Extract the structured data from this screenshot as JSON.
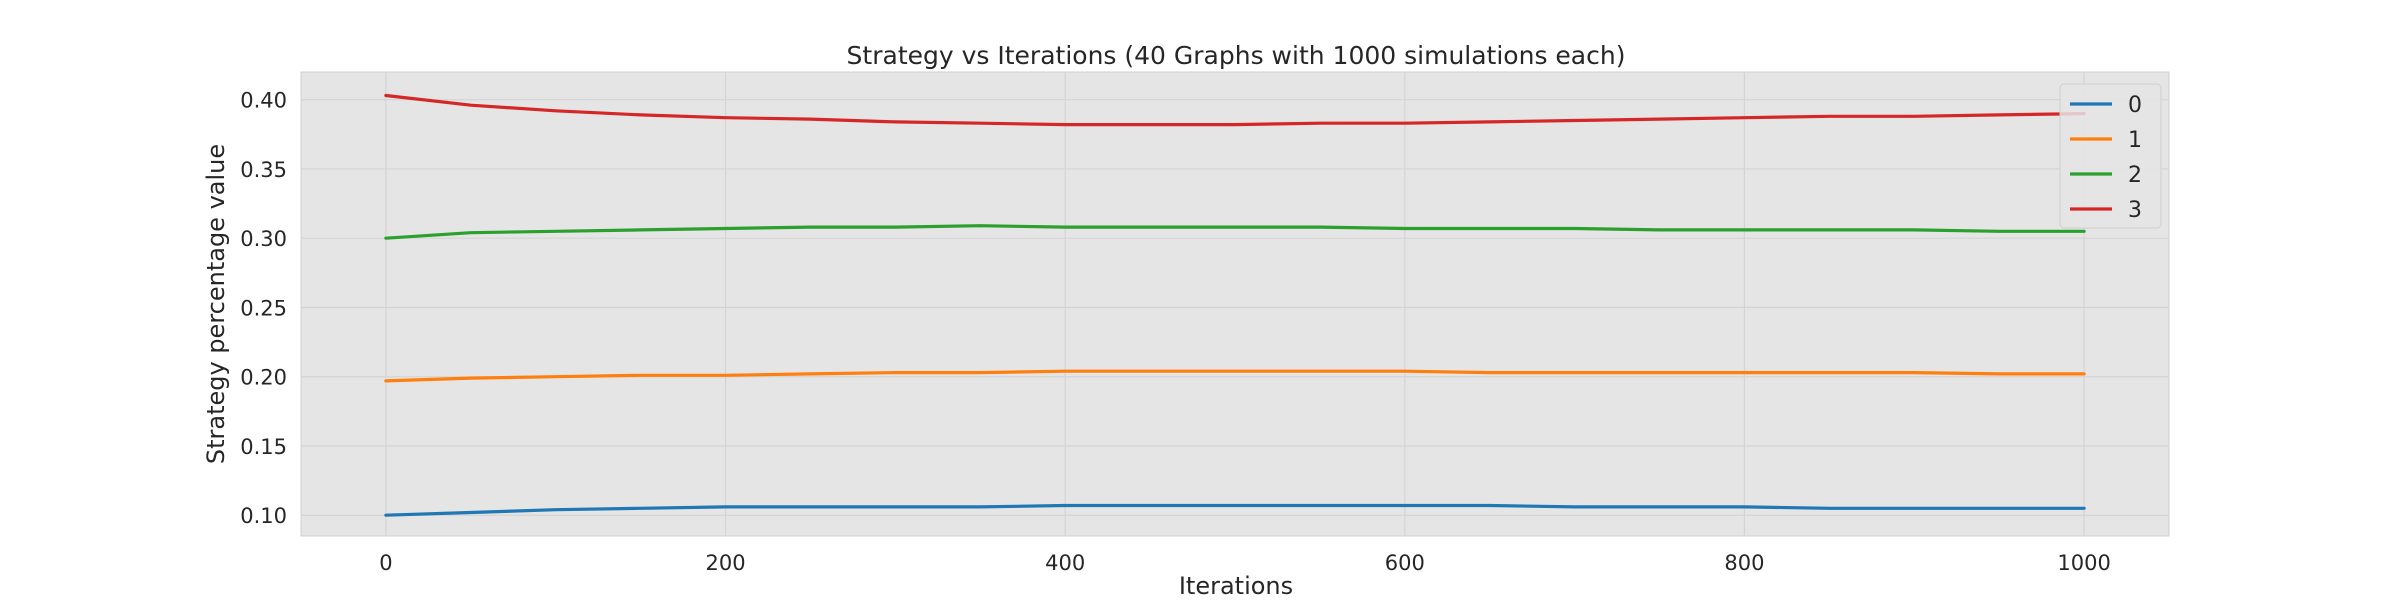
{
  "chart_data": {
    "type": "line",
    "title": "Strategy vs Iterations (40 Graphs with 1000 simulations each)",
    "xlabel": "Iterations",
    "ylabel": "Strategy percentage value",
    "xlim": [
      -50,
      1050
    ],
    "ylim": [
      0.085,
      0.42
    ],
    "xticks": [
      0,
      200,
      400,
      600,
      800,
      1000
    ],
    "xtick_labels": [
      "0",
      "200",
      "400",
      "600",
      "800",
      "1000"
    ],
    "yticks": [
      0.1,
      0.15,
      0.2,
      0.25,
      0.3,
      0.35,
      0.4
    ],
    "ytick_labels": [
      "0.10",
      "0.15",
      "0.20",
      "0.25",
      "0.30",
      "0.35",
      "0.40"
    ],
    "grid": true,
    "legend_position": "top-right",
    "background": "#e5e5e5",
    "x": [
      0,
      50,
      100,
      150,
      200,
      250,
      300,
      350,
      400,
      450,
      500,
      550,
      600,
      650,
      700,
      750,
      800,
      850,
      900,
      950,
      1000
    ],
    "series": [
      {
        "name": "0",
        "color": "#1f77b4",
        "values": [
          0.1,
          0.102,
          0.104,
          0.105,
          0.106,
          0.106,
          0.106,
          0.106,
          0.107,
          0.107,
          0.107,
          0.107,
          0.107,
          0.107,
          0.106,
          0.106,
          0.106,
          0.105,
          0.105,
          0.105,
          0.105
        ]
      },
      {
        "name": "1",
        "color": "#ff7f0e",
        "values": [
          0.197,
          0.199,
          0.2,
          0.201,
          0.201,
          0.202,
          0.203,
          0.203,
          0.204,
          0.204,
          0.204,
          0.204,
          0.204,
          0.203,
          0.203,
          0.203,
          0.203,
          0.203,
          0.203,
          0.202,
          0.202
        ]
      },
      {
        "name": "2",
        "color": "#2ca02c",
        "values": [
          0.3,
          0.304,
          0.305,
          0.306,
          0.307,
          0.308,
          0.308,
          0.309,
          0.308,
          0.308,
          0.308,
          0.308,
          0.307,
          0.307,
          0.307,
          0.306,
          0.306,
          0.306,
          0.306,
          0.305,
          0.305
        ]
      },
      {
        "name": "3",
        "color": "#d62728",
        "values": [
          0.403,
          0.396,
          0.392,
          0.389,
          0.387,
          0.386,
          0.384,
          0.383,
          0.382,
          0.382,
          0.382,
          0.383,
          0.383,
          0.384,
          0.385,
          0.386,
          0.387,
          0.388,
          0.388,
          0.389,
          0.39
        ]
      }
    ]
  }
}
